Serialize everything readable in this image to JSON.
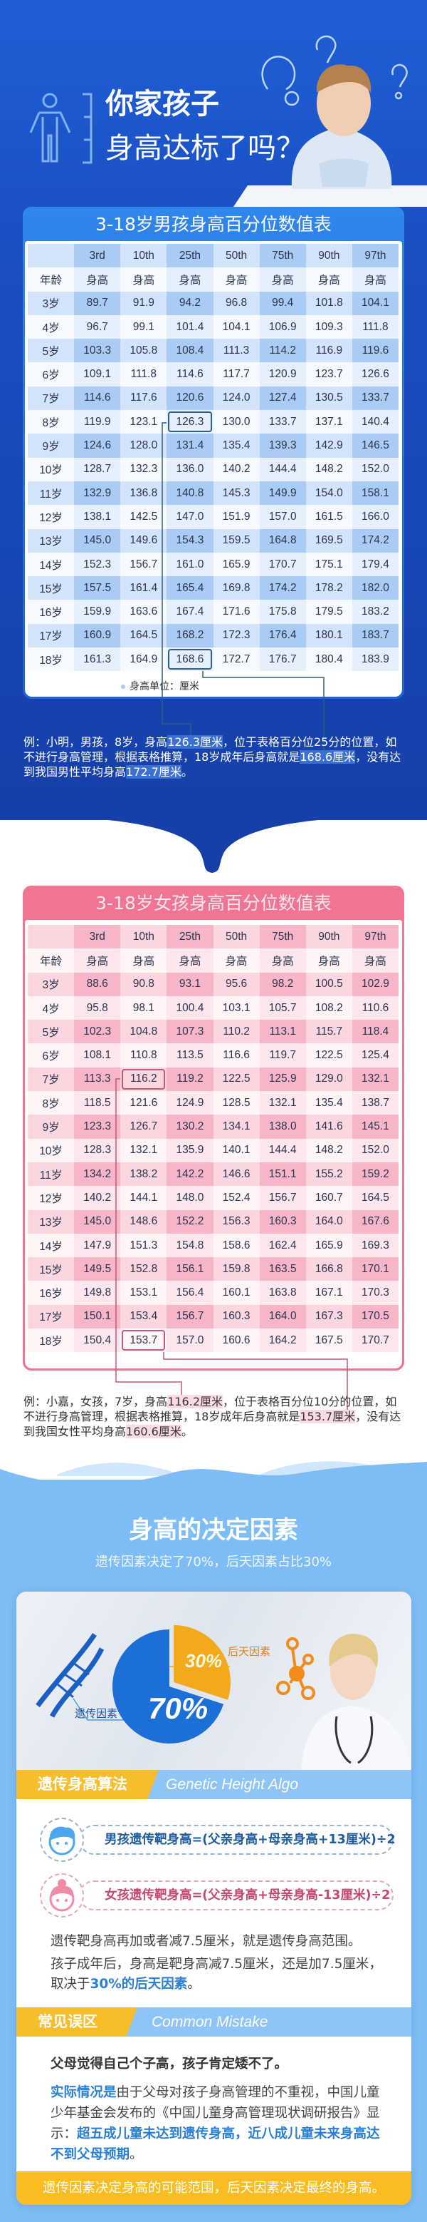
{
  "hero": {
    "title_line1": "你家孩子",
    "title_line2": "身高达标了吗？"
  },
  "boys": {
    "title": "3-18岁男孩身高百分位数值表",
    "percentiles": [
      "3rd",
      "10th",
      "25th",
      "50th",
      "75th",
      "90th",
      "97th"
    ],
    "age_label": "年龄",
    "height_label": "身高",
    "rows": [
      [
        "3岁",
        "89.7",
        "91.9",
        "94.2",
        "96.8",
        "99.4",
        "101.8",
        "104.1"
      ],
      [
        "4岁",
        "96.7",
        "99.1",
        "101.4",
        "104.1",
        "106.9",
        "109.3",
        "111.8"
      ],
      [
        "5岁",
        "103.3",
        "105.8",
        "108.4",
        "111.3",
        "114.2",
        "116.9",
        "119.6"
      ],
      [
        "6岁",
        "109.1",
        "111.8",
        "114.6",
        "117.7",
        "120.9",
        "123.7",
        "126.6"
      ],
      [
        "7岁",
        "114.6",
        "117.6",
        "120.6",
        "124.0",
        "127.4",
        "130.5",
        "133.7"
      ],
      [
        "8岁",
        "119.9",
        "123.1",
        "126.3",
        "130.0",
        "133.7",
        "137.1",
        "140.4"
      ],
      [
        "9岁",
        "124.6",
        "128.0",
        "131.4",
        "135.4",
        "139.3",
        "142.9",
        "146.5"
      ],
      [
        "10岁",
        "128.7",
        "132.3",
        "136.0",
        "140.2",
        "144.4",
        "148.2",
        "152.0"
      ],
      [
        "11岁",
        "132.9",
        "136.8",
        "140.8",
        "145.3",
        "149.9",
        "154.0",
        "158.1"
      ],
      [
        "12岁",
        "138.1",
        "142.5",
        "147.0",
        "151.9",
        "157.0",
        "161.5",
        "166.0"
      ],
      [
        "13岁",
        "145.0",
        "149.6",
        "154.3",
        "159.5",
        "164.8",
        "169.5",
        "174.2"
      ],
      [
        "14岁",
        "152.3",
        "156.7",
        "161.0",
        "165.9",
        "170.7",
        "175.1",
        "179.4"
      ],
      [
        "15岁",
        "157.5",
        "161.4",
        "165.4",
        "169.8",
        "174.2",
        "178.2",
        "182.0"
      ],
      [
        "16岁",
        "159.9",
        "163.6",
        "167.4",
        "171.6",
        "175.8",
        "179.5",
        "183.2"
      ],
      [
        "17岁",
        "160.9",
        "164.5",
        "168.2",
        "172.3",
        "176.4",
        "180.1",
        "183.7"
      ],
      [
        "18岁",
        "161.3",
        "164.9",
        "168.6",
        "172.7",
        "176.7",
        "180.4",
        "183.9"
      ]
    ],
    "highlighted_cells": [
      {
        "age": "8岁",
        "col": "25th"
      },
      {
        "age": "18岁",
        "col": "25th"
      }
    ],
    "unit_note": "身高单位：厘米",
    "example": [
      {
        "t": "例：小明，男孩，8岁，身高"
      },
      {
        "t": "126.3厘米",
        "hl": true
      },
      {
        "t": "，位于表格百分位25分的位置，如不进行身高管理，根据表格推算，18岁成年后身高就是"
      },
      {
        "t": "168.6厘米",
        "hl": true
      },
      {
        "t": "，没有达到我国男性平均身高"
      },
      {
        "t": "172.7厘米",
        "hl": true
      },
      {
        "t": "。"
      }
    ]
  },
  "girls": {
    "title": "3-18岁女孩身高百分位数值表",
    "percentiles": [
      "3rd",
      "10th",
      "25th",
      "50th",
      "75th",
      "90th",
      "97th"
    ],
    "age_label": "年龄",
    "height_label": "身高",
    "rows": [
      [
        "3岁",
        "88.6",
        "90.8",
        "93.1",
        "95.6",
        "98.2",
        "100.5",
        "102.9"
      ],
      [
        "4岁",
        "95.8",
        "98.1",
        "100.4",
        "103.1",
        "105.7",
        "108.2",
        "110.6"
      ],
      [
        "5岁",
        "102.3",
        "104.8",
        "107.3",
        "110.2",
        "113.1",
        "115.7",
        "118.4"
      ],
      [
        "6岁",
        "108.1",
        "110.8",
        "113.5",
        "116.6",
        "119.7",
        "122.5",
        "125.4"
      ],
      [
        "7岁",
        "113.3",
        "116.2",
        "119.2",
        "122.5",
        "125.9",
        "129.0",
        "132.1"
      ],
      [
        "8岁",
        "118.5",
        "121.6",
        "124.9",
        "128.5",
        "132.1",
        "135.4",
        "138.7"
      ],
      [
        "9岁",
        "123.3",
        "126.7",
        "130.2",
        "134.1",
        "138.0",
        "141.6",
        "145.1"
      ],
      [
        "10岁",
        "128.3",
        "132.1",
        "135.9",
        "140.1",
        "144.4",
        "148.2",
        "152.0"
      ],
      [
        "11岁",
        "134.2",
        "138.2",
        "142.2",
        "146.6",
        "151.1",
        "155.2",
        "159.2"
      ],
      [
        "12岁",
        "140.2",
        "144.1",
        "148.0",
        "152.4",
        "156.7",
        "160.7",
        "164.5"
      ],
      [
        "13岁",
        "145.0",
        "148.6",
        "152.2",
        "156.3",
        "160.3",
        "164.0",
        "167.6"
      ],
      [
        "14岁",
        "147.9",
        "151.3",
        "154.8",
        "158.6",
        "162.4",
        "165.9",
        "169.3"
      ],
      [
        "15岁",
        "149.5",
        "152.8",
        "156.1",
        "159.8",
        "163.5",
        "166.8",
        "170.1"
      ],
      [
        "16岁",
        "149.8",
        "153.1",
        "156.4",
        "160.1",
        "163.8",
        "167.1",
        "170.3"
      ],
      [
        "17岁",
        "150.1",
        "153.4",
        "156.7",
        "160.3",
        "164.0",
        "167.3",
        "170.5"
      ],
      [
        "18岁",
        "150.4",
        "153.7",
        "157.0",
        "160.6",
        "164.2",
        "167.5",
        "170.7"
      ]
    ],
    "highlighted_cells": [
      {
        "age": "7岁",
        "col": "10th"
      },
      {
        "age": "18岁",
        "col": "10th"
      }
    ],
    "example": [
      {
        "t": "例：小嘉，女孩，7岁，身高"
      },
      {
        "t": "116.2厘米",
        "hl": true
      },
      {
        "t": "，位于表格百分位10分的位置，如不进行身高管理，根据表格推算，18岁成年后身高就是"
      },
      {
        "t": "153.7厘米",
        "hl": true
      },
      {
        "t": "，没有达到我国女性平均身高"
      },
      {
        "t": "160.6厘米",
        "hl": true
      },
      {
        "t": "。"
      }
    ]
  },
  "factors": {
    "title": "身高的决定因素",
    "subtitle": "遗传因素决定了70%，后天因素占比30%",
    "pie": {
      "genetic_percent": 70,
      "acquired_percent": 30,
      "genetic_label_value": "70%",
      "acquired_label_value": "30%",
      "genetic_label": "遗传因素",
      "acquired_label": "后天因素",
      "genetic_color": "#1d6fd8",
      "acquired_color": "#f2a91c"
    },
    "algorithm": {
      "title_cn": "遗传身高算法",
      "title_en": "Genetic Height Algo",
      "boy_formula": "男孩遗传靶身高=(父亲身高+母亲身高+13厘米)÷2",
      "girl_formula": "女孩遗传靶身高=(父亲身高+母亲身高-13厘米)÷2",
      "line1": "遗传靶身高再加或者减7.5厘米，就是遗传身高范围。",
      "line2": "孩子成年后，身高是靶身高减7.5厘米，还是加7.5厘米，",
      "line3_prefix": "取决于",
      "line3_highlight": "30%的后天因素",
      "line3_suffix": "。"
    },
    "mistake": {
      "title_cn": "常见误区",
      "title_en": "Common Mistake",
      "statement": "父母觉得自己个子高，孩子肯定矮不了。",
      "fact_prefix": "实际情况是",
      "fact_body": "由于父母对孩子身高管理的不重视，中国儿童少年基金会发布的《中国儿童身高管理现状调研报告》显示：",
      "fact_highlight": "超五成儿童未达到遗传身高，近八成儿童未来身高达不到父母预期",
      "fact_suffix": "。"
    },
    "footer": "遗传因素决定身高的可能范围，后天因素决定最终的身高。"
  },
  "colors": {
    "hero_blue": "#1a4fc2",
    "boy_accent": "#2f86ec",
    "girl_accent": "#ef7592",
    "section_blue": "#7dbcf4",
    "yellow": "#f9bd22"
  }
}
